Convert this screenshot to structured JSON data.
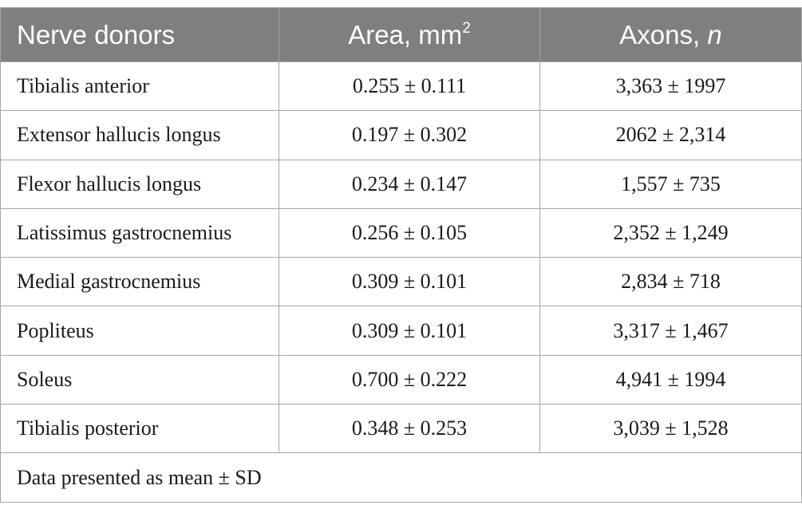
{
  "table": {
    "headers": {
      "col1": "Nerve donors",
      "col2_text": "Area, mm",
      "col2_sup": "2",
      "col3_text": "Axons, ",
      "col3_ital": "n"
    },
    "rows": [
      {
        "donor": "Tibialis anterior",
        "area": "0.255 ± 0.111",
        "axons": "3,363 ± 1997"
      },
      {
        "donor": "Extensor hallucis longus",
        "area": "0.197 ± 0.302",
        "axons": "2062 ± 2,314"
      },
      {
        "donor": "Flexor hallucis longus",
        "area": "0.234 ± 0.147",
        "axons": "1,557 ± 735"
      },
      {
        "donor": "Latissimus gastrocnemius",
        "area": "0.256 ± 0.105",
        "axons": "2,352 ± 1,249"
      },
      {
        "donor": "Medial gastrocnemius",
        "area": "0.309 ± 0.101",
        "axons": "2,834 ± 718"
      },
      {
        "donor": "Popliteus",
        "area": "0.309 ± 0.101",
        "axons": "3,317 ± 1,467"
      },
      {
        "donor": "Soleus",
        "area": "0.700 ± 0.222",
        "axons": "4,941 ± 1994"
      },
      {
        "donor": "Tibialis posterior",
        "area": "0.348 ± 0.253",
        "axons": "3,039 ± 1,528"
      }
    ],
    "footnote": "Data presented as mean ± SD"
  }
}
